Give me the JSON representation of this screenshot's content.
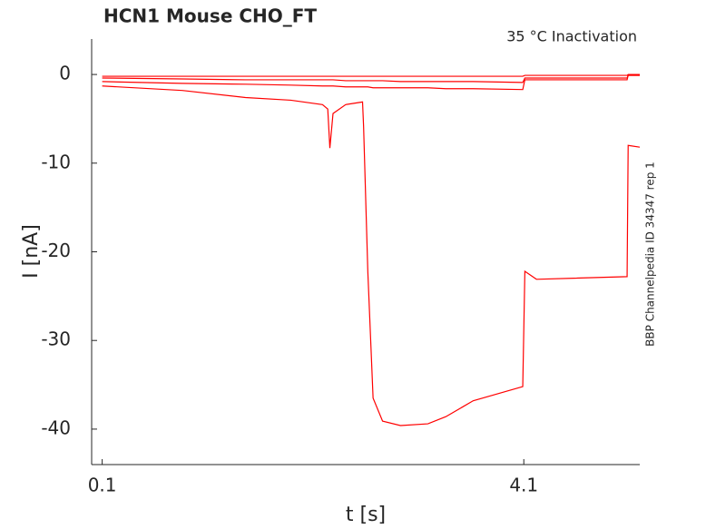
{
  "chart_data": {
    "type": "line",
    "title": "HCN1  Mouse  CHO_FT",
    "annotation": "35 °C  Inactivation",
    "side_label": "BBP Channelpedia ID 34347 rep 1",
    "xlabel": "t [s]",
    "ylabel": "I [nA]",
    "x": [
      0.1,
      0.86,
      1.46,
      1.89,
      2.19,
      2.24,
      2.26,
      2.29,
      2.41,
      2.57,
      2.58,
      2.62,
      2.67,
      2.76,
      2.93,
      3.19,
      3.36,
      3.62,
      4.09,
      4.11,
      4.22,
      5.08,
      5.09,
      5.2
    ],
    "series": [
      {
        "color": "#ff0000",
        "values": [
          -1.3,
          -1.8,
          -2.6,
          -2.9,
          -3.4,
          -3.9,
          -8.3,
          -4.4,
          -3.4,
          -3.1,
          -5.9,
          -22.2,
          -36.5,
          -39.1,
          -39.6,
          -39.4,
          -38.6,
          -36.8,
          -35.2,
          -22.2,
          -23.1,
          -22.8,
          -8.0,
          -8.2
        ]
      },
      {
        "color": "#ff0000",
        "values": [
          -0.8,
          -1.0,
          -1.1,
          -1.2,
          -1.3,
          -1.3,
          -1.3,
          -1.3,
          -1.4,
          -1.4,
          -1.4,
          -1.4,
          -1.5,
          -1.5,
          -1.5,
          -1.5,
          -1.6,
          -1.6,
          -1.7,
          -0.6,
          -0.6,
          -0.6,
          -0.1,
          -0.1
        ]
      },
      {
        "color": "#ff0000",
        "values": [
          -0.4,
          -0.5,
          -0.6,
          -0.6,
          -0.6,
          -0.6,
          -0.6,
          -0.6,
          -0.7,
          -0.7,
          -0.7,
          -0.7,
          -0.7,
          -0.7,
          -0.8,
          -0.8,
          -0.8,
          -0.8,
          -0.9,
          -0.4,
          -0.4,
          -0.4,
          -0.1,
          -0.1
        ]
      },
      {
        "color": "#ff0000",
        "values": [
          -0.2,
          -0.2,
          -0.2,
          -0.2,
          -0.2,
          -0.2,
          -0.2,
          -0.2,
          -0.2,
          -0.2,
          -0.2,
          -0.2,
          -0.2,
          -0.2,
          -0.2,
          -0.2,
          -0.2,
          -0.2,
          -0.2,
          -0.1,
          -0.1,
          -0.1,
          0,
          0
        ]
      }
    ],
    "xlim": [
      0,
      5.2
    ],
    "ylim": [
      -44,
      4
    ],
    "xticks": [
      0.1,
      4.1
    ],
    "yticks": [
      -40,
      -30,
      -20,
      -10,
      0
    ],
    "grid": false
  }
}
